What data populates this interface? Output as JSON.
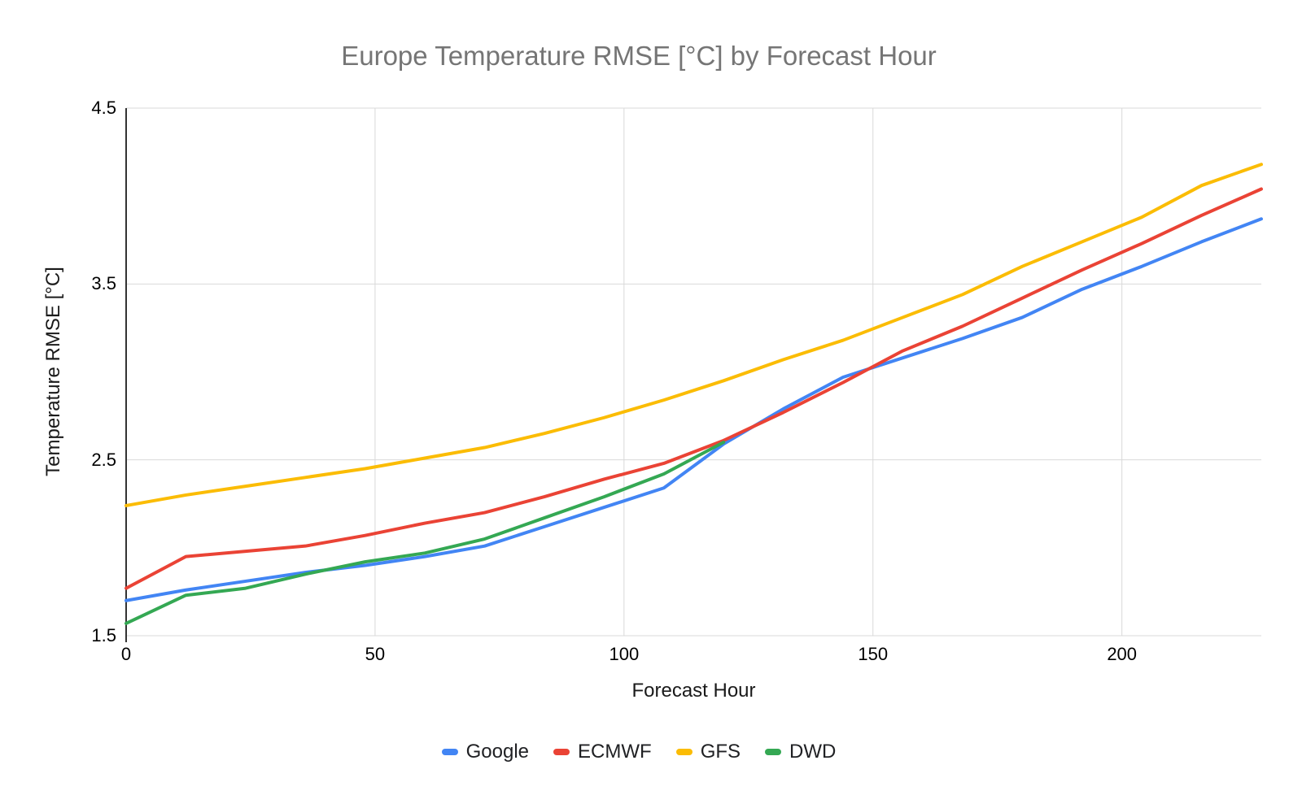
{
  "chart_data": {
    "type": "line",
    "title": "Europe Temperature RMSE [°C] by Forecast Hour",
    "title_color": "#757575",
    "xlabel": "Forecast Hour",
    "ylabel": "Temperature RMSE [°C]",
    "xlim": [
      0,
      228
    ],
    "ylim": [
      1.5,
      4.5
    ],
    "x_ticks": [
      0,
      50,
      100,
      150,
      200
    ],
    "y_ticks": [
      1.5,
      2.5,
      3.5,
      4.5
    ],
    "grid": true,
    "gridline_color": "#d9d9d9",
    "axis_line_color": "#333333",
    "legend_position": "bottom",
    "x": [
      0,
      12,
      24,
      36,
      48,
      60,
      72,
      84,
      96,
      108,
      120,
      132,
      144,
      156,
      168,
      180,
      192,
      204,
      216,
      228
    ],
    "series": [
      {
        "name": "Google",
        "color": "#4285F4",
        "values": [
          1.7,
          1.76,
          1.81,
          1.86,
          1.9,
          1.95,
          2.01,
          2.12,
          2.23,
          2.34,
          2.59,
          2.79,
          2.97,
          3.08,
          3.19,
          3.31,
          3.47,
          3.6,
          3.74,
          3.87
        ]
      },
      {
        "name": "ECMWF",
        "color": "#EA4335",
        "values": [
          1.77,
          1.95,
          1.98,
          2.01,
          2.07,
          2.14,
          2.2,
          2.29,
          2.39,
          2.48,
          2.61,
          2.77,
          2.94,
          3.12,
          3.26,
          3.42,
          3.58,
          3.73,
          3.89,
          4.04
        ]
      },
      {
        "name": "GFS",
        "color": "#FBBC04",
        "values": [
          2.24,
          2.3,
          2.35,
          2.4,
          2.45,
          2.51,
          2.57,
          2.65,
          2.74,
          2.84,
          2.95,
          3.07,
          3.18,
          3.31,
          3.44,
          3.6,
          3.74,
          3.88,
          4.06,
          4.18
        ]
      },
      {
        "name": "DWD",
        "color": "#34A853",
        "values": [
          1.57,
          1.73,
          1.77,
          1.85,
          1.92,
          1.97,
          2.05,
          2.17,
          2.29,
          2.42,
          2.6
        ]
      }
    ]
  }
}
